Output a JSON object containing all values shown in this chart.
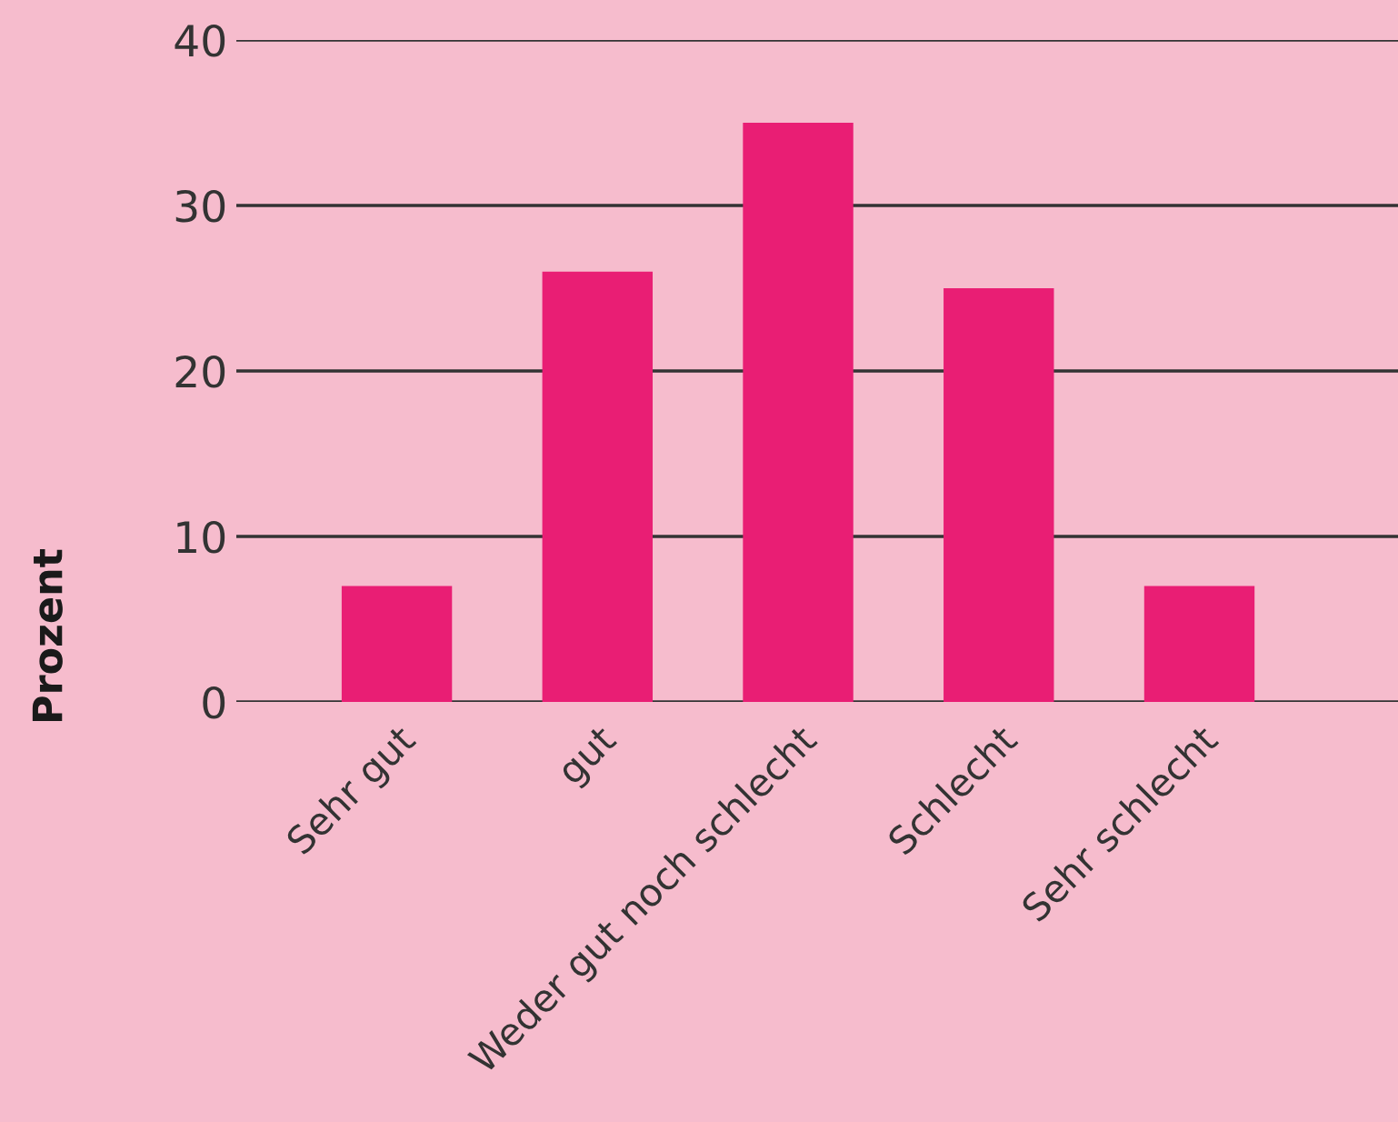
{
  "chart_data": {
    "type": "bar",
    "ylabel": "Prozent",
    "categories": [
      "Sehr gut",
      "gut",
      "Weder gut noch schlecht",
      "Schlecht",
      "Sehr schlecht"
    ],
    "values": [
      7,
      26,
      35,
      25,
      7
    ],
    "color": "#e91e74",
    "ylim": [
      0,
      40
    ],
    "yticks": [
      0,
      10,
      20,
      30,
      40
    ],
    "grid": "y",
    "legend": false
  }
}
